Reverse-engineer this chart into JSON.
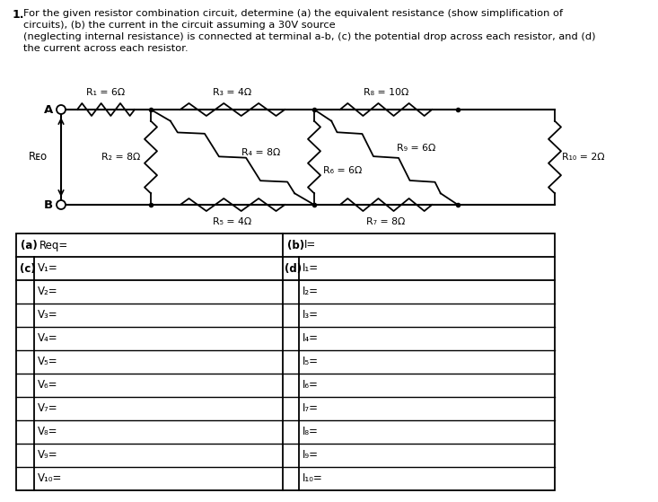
{
  "resistors": {
    "R1": "R₁ = 6Ω",
    "R2": "R₂ = 8Ω",
    "R3": "R₃ = 4Ω",
    "R4": "R₄ = 8Ω",
    "R5": "R₅ = 4Ω",
    "R6": "R₆ = 6Ω",
    "R7": "R₇ = 8Ω",
    "R8": "R₈ = 10Ω",
    "R9": "R₉ = 6Ω",
    "R10": "R₁₀ = 2Ω"
  },
  "v_labels": [
    "V₁=",
    "V₂=",
    "V₃=",
    "V₄=",
    "V₅=",
    "V₆=",
    "V₇=",
    "V₈=",
    "V₉=",
    "V₁₀="
  ],
  "i_labels": [
    "I₁=",
    "I₂=",
    "I₃=",
    "I₄=",
    "I₅=",
    "I₆=",
    "I₇=",
    "I₈=",
    "I₉=",
    "I₁₀="
  ],
  "bg_color": "#ffffff",
  "text_color": "#000000"
}
